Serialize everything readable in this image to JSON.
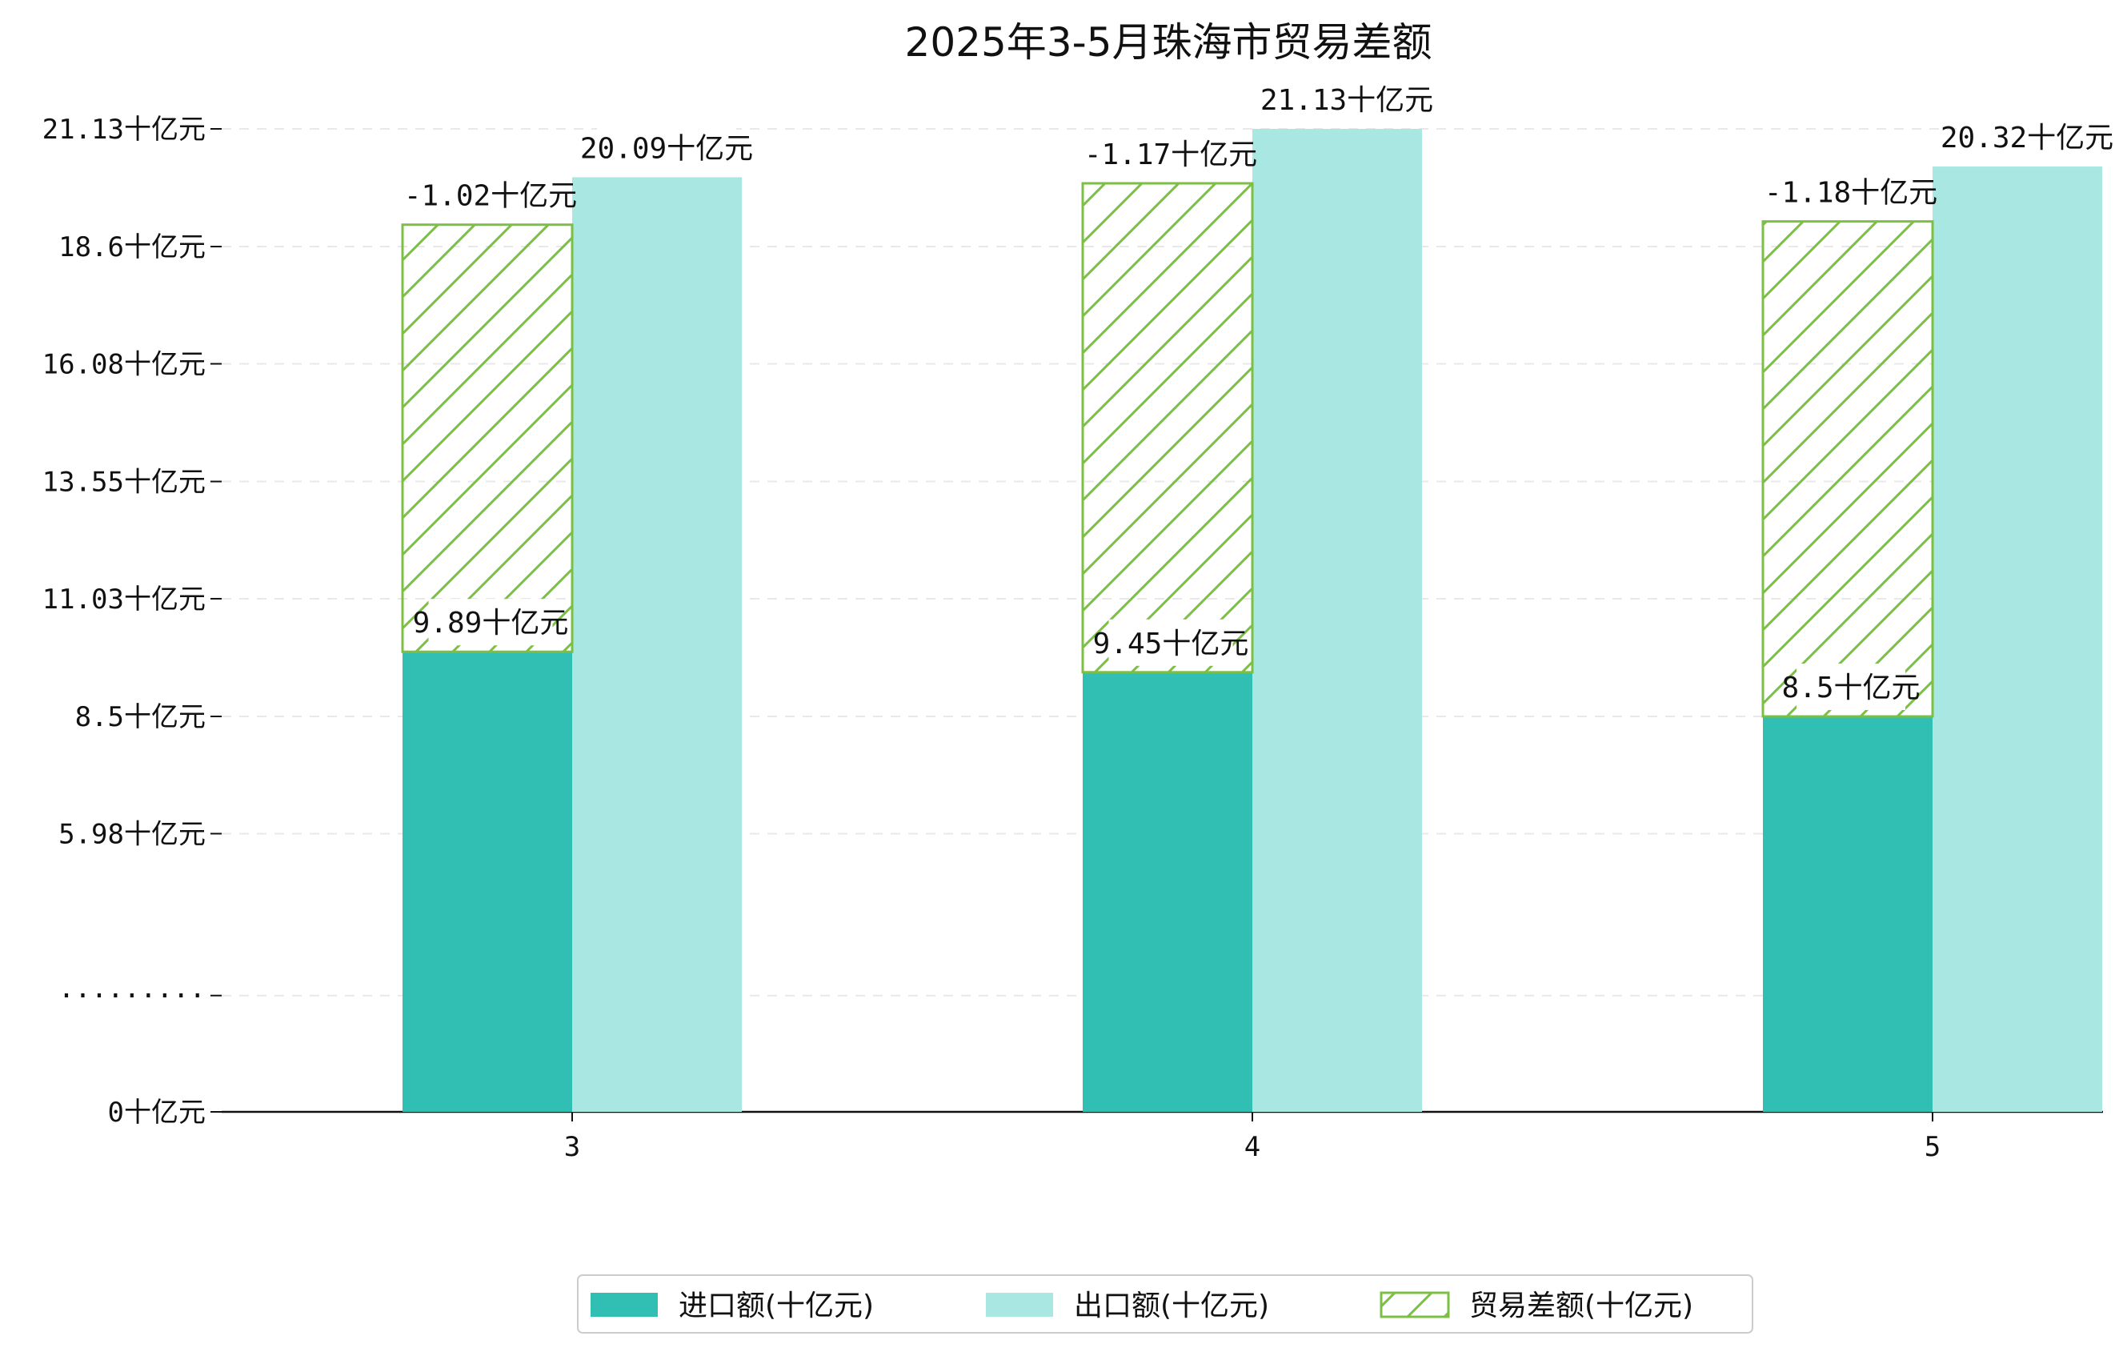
{
  "chart_data": {
    "type": "bar",
    "title": "2025年3-5月珠海市贸易差额",
    "xlabel": "",
    "ylabel": "",
    "categories": [
      "3",
      "4",
      "5"
    ],
    "series": [
      {
        "name": "进口额(十亿元)",
        "values": [
          9.89,
          9.45,
          8.5
        ],
        "labels": [
          "9.89十亿元",
          "9.45十亿元",
          "8.5十亿元"
        ],
        "color": "#32bfb3"
      },
      {
        "name": "出口额(十亿元)",
        "values": [
          20.09,
          21.13,
          20.32
        ],
        "labels": [
          "20.09十亿元",
          "21.13十亿元",
          "20.32十亿元"
        ],
        "color": "#a8e7e2"
      },
      {
        "name": "贸易差额(十亿元)",
        "values": [
          -1.02,
          -1.17,
          -1.18
        ],
        "labels": [
          "-1.02十亿元",
          "-1.17十亿元",
          "-1.18十亿元"
        ],
        "color": "#7cbf45",
        "hatch": true
      }
    ],
    "yticks": [
      {
        "label": "0十亿元",
        "value": 0
      },
      {
        "label": "·········",
        "value": 2.5
      },
      {
        "label": "5.98十亿元",
        "value": 5.98
      },
      {
        "label": "8.5十亿元",
        "value": 8.5
      },
      {
        "label": "11.03十亿元",
        "value": 11.03
      },
      {
        "label": "13.55十亿元",
        "value": 13.55
      },
      {
        "label": "16.08十亿元",
        "value": 16.08
      },
      {
        "label": "18.6十亿元",
        "value": 18.6
      },
      {
        "label": "21.13十亿元",
        "value": 21.13
      }
    ],
    "ylim": [
      0,
      21.13
    ],
    "grid": true,
    "legend_position": "bottom"
  }
}
